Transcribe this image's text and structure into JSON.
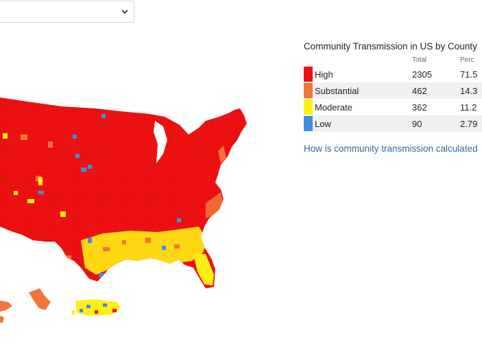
{
  "dropdown": {
    "selected": ""
  },
  "legend": {
    "title": "Community Transmission in US by County",
    "col_total": "Total",
    "col_percent": "Perc",
    "rows": [
      {
        "label": "High",
        "total": "2305",
        "percent": "71.5",
        "color": "#ee1111"
      },
      {
        "label": "Substantial",
        "total": "462",
        "percent": "14.3",
        "color": "#f4743b"
      },
      {
        "label": "Moderate",
        "total": "362",
        "percent": "11.2",
        "color": "#ffee11"
      },
      {
        "label": "Low",
        "total": "90",
        "percent": "2.79",
        "color": "#3d8ee6"
      }
    ]
  },
  "link": {
    "text": "How is community transmission calculated"
  }
}
